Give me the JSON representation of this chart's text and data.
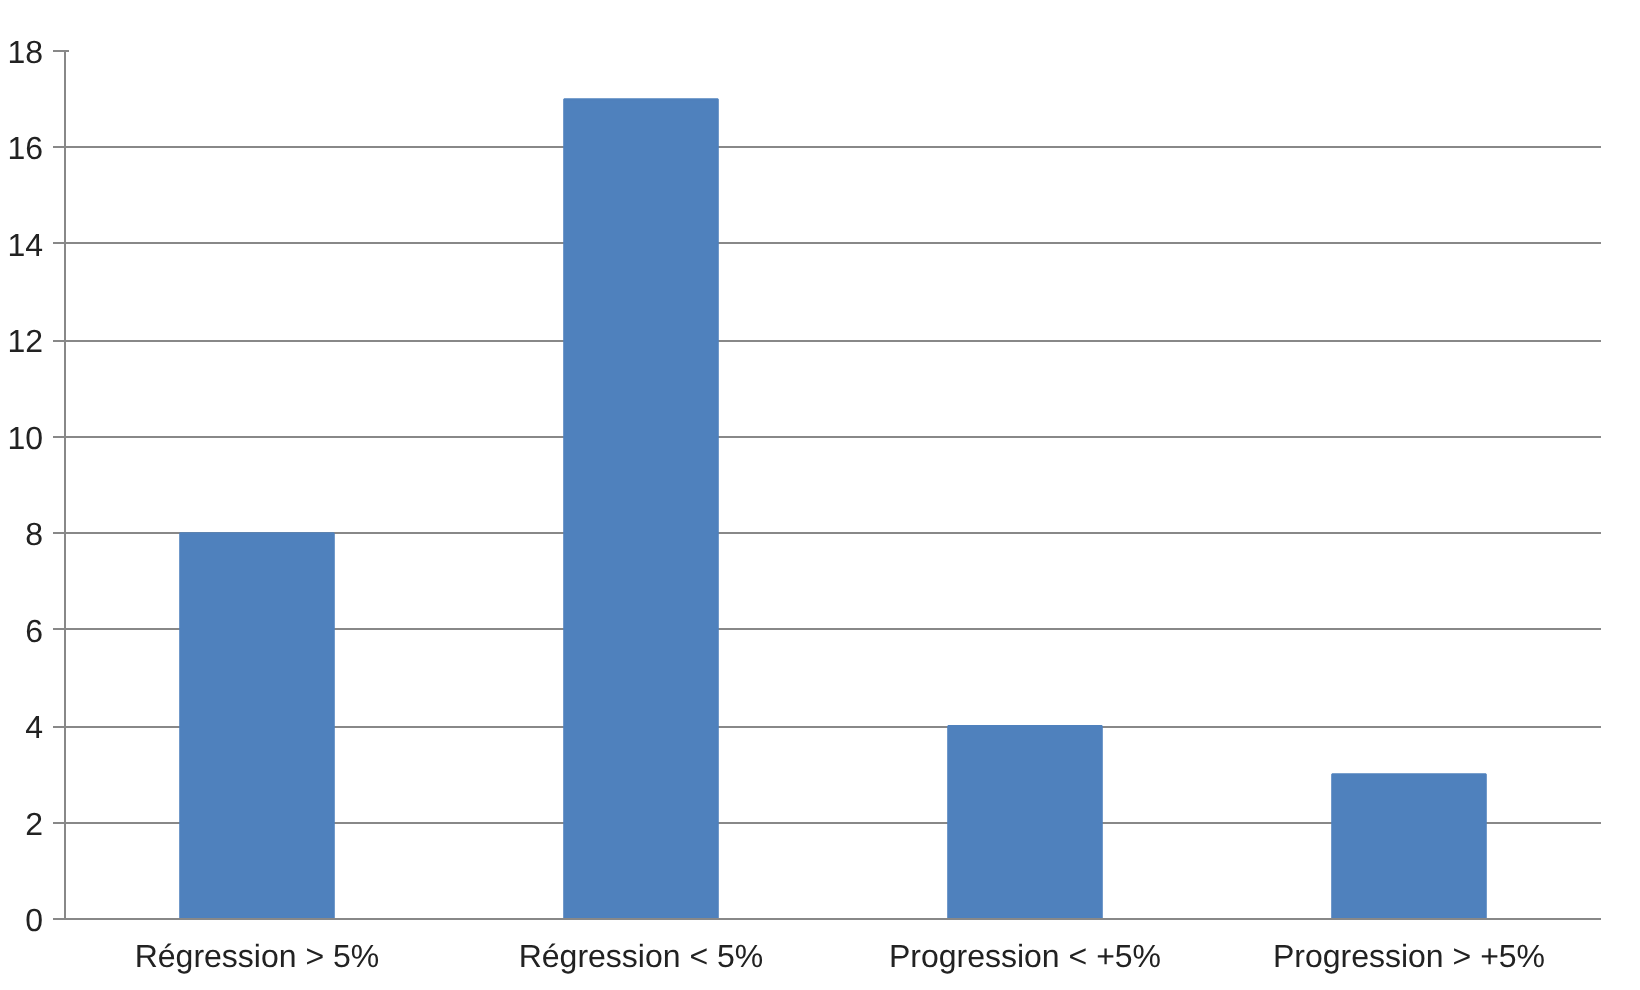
{
  "chart_data": {
    "type": "bar",
    "categories": [
      "Régression > 5%",
      "Régression < 5%",
      "Progression < +5%",
      "Progression > +5%"
    ],
    "values": [
      8,
      17,
      4,
      3
    ],
    "color": "#4f81bd",
    "ylim": [
      0,
      18
    ],
    "yticks": [
      0,
      2,
      4,
      6,
      8,
      10,
      12,
      14,
      16,
      18
    ],
    "grid": "y"
  }
}
